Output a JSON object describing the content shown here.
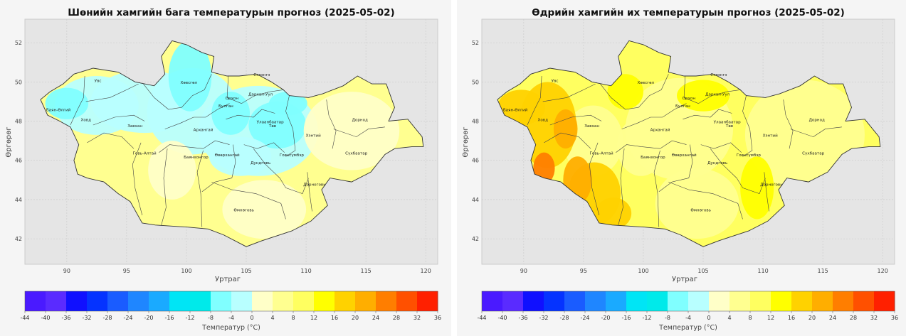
{
  "panels": [
    {
      "title": "Шөнийн хамгийн бага температурын прогноз (2025-05-02)",
      "xlabel": "Уртраг",
      "ylabel": "Өргөрөг",
      "cbar_label": "Температур (°C)"
    },
    {
      "title": "Өдрийн хамгийн их температурын прогноз (2025-05-02)",
      "xlabel": "Уртраг",
      "ylabel": "Өргөрөг",
      "cbar_label": "Температур (°C)"
    }
  ],
  "lon_ticks": [
    "90",
    "95",
    "100",
    "105",
    "110",
    "115",
    "120"
  ],
  "lat_ticks": [
    "52",
    "50",
    "48",
    "46",
    "44",
    "42"
  ],
  "colorbar": {
    "ticks": [
      "-44",
      "-40",
      "-36",
      "-32",
      "-28",
      "-24",
      "-20",
      "-16",
      "-12",
      "-8",
      "-4",
      "0",
      "4",
      "8",
      "12",
      "16",
      "20",
      "24",
      "28",
      "32",
      "36"
    ],
    "colors": [
      "#4a1aff",
      "#5a2bff",
      "#1010ff",
      "#0533ff",
      "#1a5cff",
      "#1f86ff",
      "#1aaaff",
      "#00e5f5",
      "#00eaea",
      "#80ffff",
      "#b8ffff",
      "#ffffc8",
      "#ffff90",
      "#ffff60",
      "#ffff00",
      "#ffd200",
      "#ffae00",
      "#ff7e00",
      "#ff5000",
      "#ff2000",
      "#ff0000"
    ]
  },
  "aimags": [
    "Увс",
    "Баян-Өлгий",
    "Ховд",
    "Завхан",
    "Хөвсгөл",
    "Сэлэнгэ",
    "Дархан-Уул",
    "Орхон",
    "Булган",
    "Архангай",
    "Улаанбаатар",
    "Төв",
    "Хэнтий",
    "Дорнод",
    "Сүхбаатар",
    "Говь-Алтай",
    "Баянхонгор",
    "Өвөрхангай",
    "Дундговь",
    "Говьсүмбэр",
    "Дорноговь",
    "Өмнөговь"
  ],
  "chart_data": [
    {
      "type": "heatmap",
      "title": "Шөнийн хамгийн бага температурын прогноз (2025-05-02)",
      "xlabel": "Уртраг",
      "ylabel": "Өргөрөг",
      "xlim": [
        86.5,
        121
      ],
      "ylim": [
        40.7,
        53.2
      ],
      "colorbar_label": "Температур (°C)",
      "colorbar_range": [
        -44,
        36
      ],
      "approx_values_by_region": {
        "Хөвсгөл": -2,
        "Увс": -2,
        "Баян-Өлгий": -2,
        "Завхан": -2,
        "Архангай": -2,
        "Булган": -6,
        "Төв": -6,
        "Хэнтий": -6,
        "Сэлэнгэ": -2,
        "Дорнод": 2,
        "Сүхбаатар": 2,
        "Говь-Алтай": 4,
        "Баянхонгор": 2,
        "Өвөрхангай": -2,
        "Дундговь": -2,
        "Дорноговь": 4,
        "Өмнөговь": 4,
        "Ховд": 4
      }
    },
    {
      "type": "heatmap",
      "title": "Өдрийн хамгийн их температурын прогноз (2025-05-02)",
      "xlabel": "Уртраг",
      "ylabel": "Өргөрөг",
      "xlim": [
        86.5,
        121
      ],
      "ylim": [
        40.7,
        53.2
      ],
      "colorbar_label": "Температур (°C)",
      "colorbar_range": [
        -44,
        36
      ],
      "approx_values_by_region": {
        "Баян-Өлгий": 18,
        "Ховд": 22,
        "Увс": 14,
        "Говь-Алтай": 18,
        "Завхан": 10,
        "Хөвсгөл": 10,
        "Архангай": 10,
        "Сэлэнгэ": 12,
        "Дархан-Уул": 12,
        "Төв": 8,
        "Хэнтий": 8,
        "Дорнод": 8,
        "Сүхбаатар": 8,
        "Баянхонгор": 12,
        "Өвөрхангай": 10,
        "Дундговь": 12,
        "Дорноговь": 12,
        "Өмнөговь": 10
      }
    }
  ]
}
